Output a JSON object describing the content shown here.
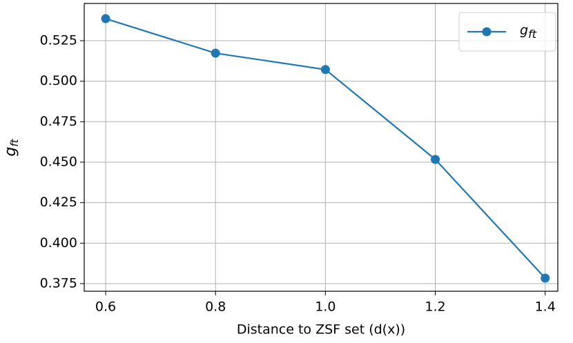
{
  "chart_data": {
    "type": "line",
    "xlabel": "Distance to ZSF set (d(x))",
    "ylabel": {
      "base": "g",
      "sub": "ft"
    },
    "x": [
      0.6,
      0.8,
      1.0,
      1.2,
      1.4
    ],
    "series": [
      {
        "name": "g",
        "name_sub": "ft",
        "color": "#1f77b4",
        "values": [
          0.5386,
          0.5173,
          0.5072,
          0.4517,
          0.3784
        ]
      }
    ],
    "xlim": [
      0.561,
      1.423
    ],
    "ylim": [
      0.3703,
      0.548
    ],
    "xticks": [
      0.6,
      0.8,
      {
        "value": 1.0,
        "label": "1.0"
      },
      1.2,
      1.4
    ],
    "yticks": [
      0.375,
      {
        "value": 0.4,
        "label": "0.400"
      },
      0.425,
      {
        "value": 0.45,
        "label": "0.450"
      },
      0.475,
      {
        "value": 0.5,
        "label": "0.500"
      },
      0.525
    ],
    "grid": true,
    "legend": "upper-right"
  }
}
